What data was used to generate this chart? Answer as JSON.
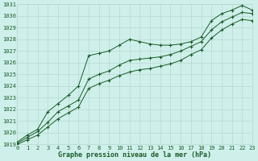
{
  "title": "Graphe pression niveau de la mer (hPa)",
  "xlim": [
    0,
    23
  ],
  "ylim": [
    1019,
    1031
  ],
  "ytick_vals": [
    1019,
    1020,
    1021,
    1022,
    1023,
    1024,
    1025,
    1026,
    1027,
    1028,
    1029,
    1030,
    1031
  ],
  "xtick_vals": [
    0,
    1,
    2,
    3,
    4,
    5,
    6,
    7,
    8,
    9,
    10,
    11,
    12,
    13,
    14,
    15,
    16,
    17,
    18,
    19,
    20,
    21,
    22,
    23
  ],
  "bg_color": "#cff0ea",
  "grid_color": "#b8d8d0",
  "line_color": "#1a5c2a",
  "line1_y": [
    1019.2,
    1019.8,
    1020.3,
    1021.8,
    1022.5,
    1023.2,
    1024.0,
    1026.6,
    1026.8,
    1027.0,
    1027.5,
    1028.0,
    1027.8,
    1027.6,
    1027.5,
    1027.5,
    1027.6,
    1027.8,
    1028.2,
    1029.6,
    1030.2,
    1030.5,
    1030.9,
    1030.5
  ],
  "line2_y": [
    1019.1,
    1019.6,
    1020.1,
    1020.9,
    1021.8,
    1022.3,
    1022.8,
    1024.6,
    1025.0,
    1025.3,
    1025.8,
    1026.2,
    1026.3,
    1026.4,
    1026.5,
    1026.7,
    1027.0,
    1027.4,
    1027.8,
    1028.8,
    1029.5,
    1029.9,
    1030.3,
    1030.2
  ],
  "line3_y": [
    1019.0,
    1019.4,
    1019.8,
    1020.5,
    1021.2,
    1021.7,
    1022.2,
    1023.8,
    1024.2,
    1024.5,
    1024.9,
    1025.2,
    1025.4,
    1025.5,
    1025.7,
    1025.9,
    1026.2,
    1026.7,
    1027.1,
    1028.1,
    1028.8,
    1029.3,
    1029.7,
    1029.6
  ],
  "xlabel_fontsize": 6,
  "tick_fontsize": 5
}
